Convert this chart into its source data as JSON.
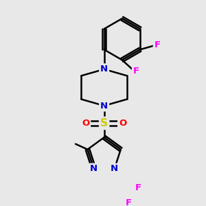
{
  "background_color": "#e8e8e8",
  "bond_color": "#000000",
  "bond_width": 1.8,
  "atom_colors": {
    "N": "#0000cc",
    "S": "#cccc00",
    "O": "#ff0000",
    "F": "#ff00ff"
  },
  "font_size": 9.5
}
